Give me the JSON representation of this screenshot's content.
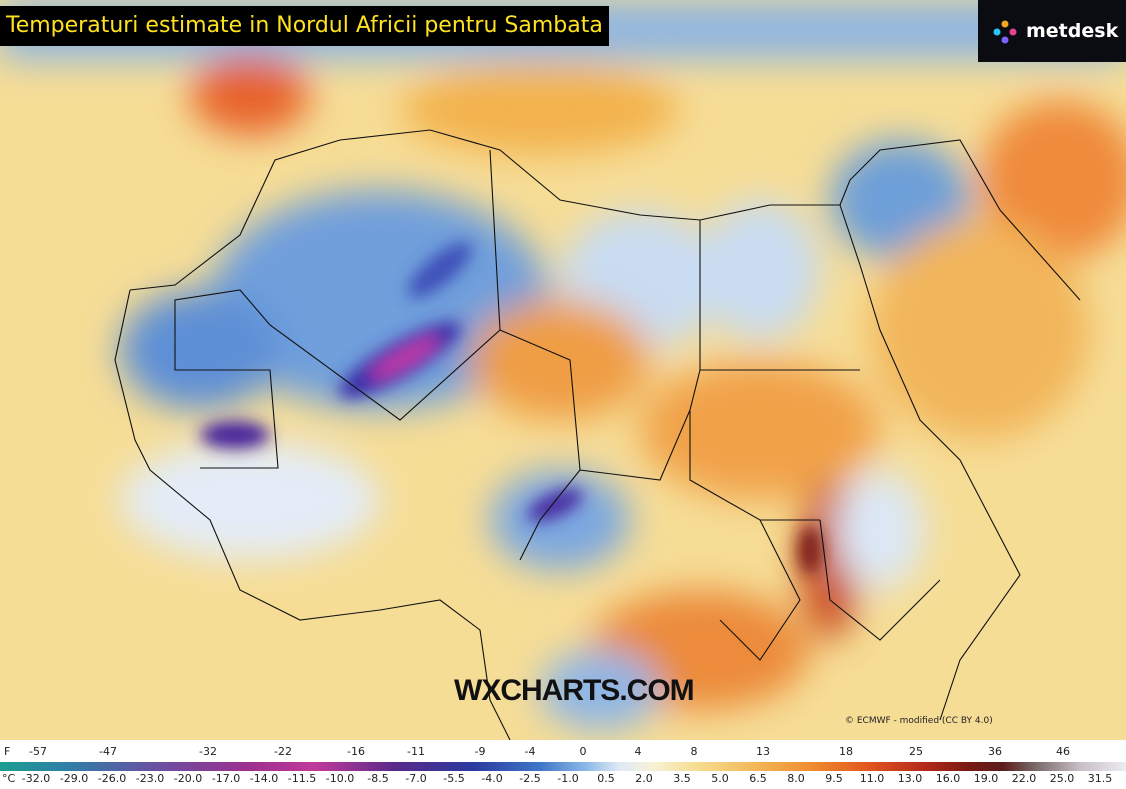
{
  "header": {
    "title": "Temperaturi estimate in Nordul Africii pentru Sambata",
    "logo": "metdesk"
  },
  "map": {
    "watermark": "WXCHARTS.COM",
    "attribution": "© ECMWF - modified (CC BY 4.0)"
  },
  "legend": {
    "f_unit": "F",
    "f_labels": [
      "-57",
      "-47",
      "-32",
      "-22",
      "-16",
      "-11",
      "-9",
      "-4",
      "0",
      "4",
      "8",
      "13",
      "18",
      "25",
      "36",
      "46"
    ],
    "c_unit": "°C",
    "c_labels": [
      "-32.0",
      "-29.0",
      "-26.0",
      "-23.0",
      "-20.0",
      "-17.0",
      "-14.0",
      "-11.5",
      "-10.0",
      "-8.5",
      "-7.0",
      "-5.5",
      "-4.0",
      "-2.5",
      "-1.0",
      "0.5",
      "2.0",
      "3.5",
      "5.0",
      "6.5",
      "8.0",
      "9.5",
      "11.0",
      "13.0",
      "16.0",
      "19.0",
      "22.0",
      "25.0",
      "31.5"
    ]
  }
}
